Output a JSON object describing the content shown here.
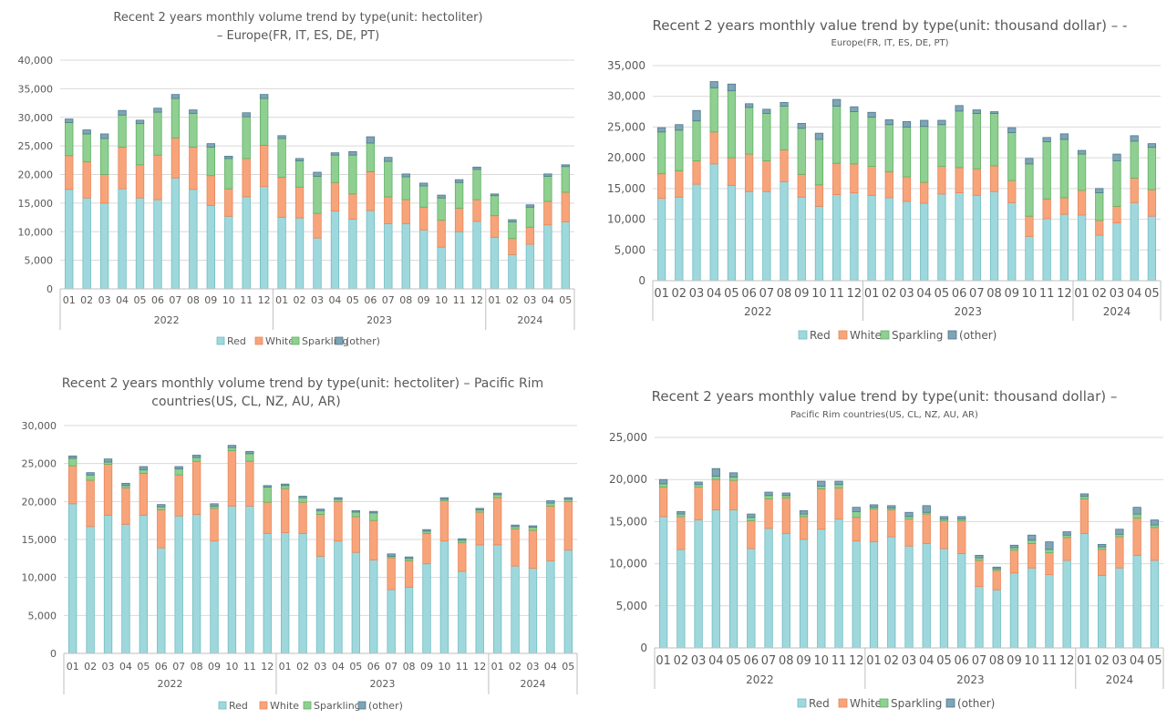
{
  "chart_data": [
    {
      "type": "bar",
      "stacked": true,
      "title_lines": [
        "Recent 2 years monthly volume trend by type(unit: hectoliter)",
        "– Europe(FR, IT, ES, DE, PT)"
      ],
      "ylim": [
        0,
        40000
      ],
      "ytick_labels": [
        "0",
        "5,000",
        "10,000",
        "15,000",
        "20,000",
        "25,000",
        "30,000",
        "35,000",
        "40,000"
      ],
      "categories": [
        "01",
        "02",
        "03",
        "04",
        "05",
        "06",
        "07",
        "08",
        "09",
        "10",
        "11",
        "12",
        "01",
        "02",
        "03",
        "04",
        "05",
        "06",
        "07",
        "08",
        "09",
        "10",
        "11",
        "12",
        "01",
        "02",
        "03",
        "04",
        "05"
      ],
      "years": [
        {
          "label": "2022",
          "count": 12
        },
        {
          "label": "2023",
          "count": 12
        },
        {
          "label": "2024",
          "count": 5
        }
      ],
      "series": [
        {
          "name": "Red",
          "values": [
            17400,
            15900,
            15000,
            17500,
            15900,
            15600,
            19400,
            17400,
            14600,
            12700,
            16100,
            17900,
            12500,
            12400,
            8900,
            13600,
            12200,
            13700,
            11400,
            11400,
            10300,
            7300,
            10000,
            11800,
            9000,
            6000,
            7800,
            11200,
            11700
          ]
        },
        {
          "name": "White",
          "values": [
            5900,
            6300,
            5000,
            7300,
            5800,
            7800,
            7000,
            7400,
            5200,
            4800,
            6700,
            7200,
            7000,
            5400,
            4300,
            5000,
            4400,
            6800,
            4700,
            4200,
            4000,
            4700,
            4100,
            3800,
            3800,
            2800,
            3000,
            4100,
            5200
          ]
        },
        {
          "name": "Sparkling",
          "values": [
            5800,
            4900,
            6300,
            5600,
            7200,
            7500,
            6900,
            5900,
            5000,
            5300,
            7300,
            8200,
            6800,
            4600,
            6500,
            4800,
            6800,
            5000,
            6200,
            4000,
            3700,
            3900,
            4500,
            5300,
            3500,
            2900,
            3500,
            4400,
            4500
          ]
        },
        {
          "name": "(other)",
          "values": [
            600,
            700,
            800,
            800,
            600,
            700,
            700,
            600,
            600,
            400,
            700,
            700,
            500,
            400,
            700,
            400,
            600,
            1100,
            700,
            500,
            500,
            500,
            500,
            400,
            300,
            400,
            400,
            400,
            300
          ]
        }
      ],
      "legend": [
        "Red",
        "White",
        "Sparkling",
        "(other)"
      ],
      "legend_position": "bottom"
    },
    {
      "type": "bar",
      "stacked": true,
      "title_lines": [
        "Recent 2 years monthly value trend by type(unit: thousand dollar) – -",
        "Europe(FR, IT, ES, DE, PT)"
      ],
      "ylim": [
        0,
        35000
      ],
      "ytick_labels": [
        "0",
        "5,000",
        "10,000",
        "15,000",
        "20,000",
        "25,000",
        "30,000",
        "35,000"
      ],
      "categories": [
        "01",
        "02",
        "03",
        "04",
        "05",
        "06",
        "07",
        "08",
        "09",
        "10",
        "11",
        "12",
        "01",
        "02",
        "03",
        "04",
        "05",
        "06",
        "07",
        "08",
        "09",
        "10",
        "11",
        "12",
        "01",
        "02",
        "03",
        "04",
        "05"
      ],
      "years": [
        {
          "label": "2022",
          "count": 12
        },
        {
          "label": "2023",
          "count": 12
        },
        {
          "label": "2024",
          "count": 5
        }
      ],
      "series": [
        {
          "name": "Red",
          "values": [
            13400,
            13600,
            15700,
            19000,
            15500,
            14500,
            14500,
            16100,
            13600,
            12100,
            14000,
            14300,
            13900,
            13500,
            12900,
            12600,
            14100,
            14300,
            13900,
            14500,
            12700,
            7200,
            10100,
            10800,
            10700,
            7400,
            9400,
            12700,
            10500
          ]
        },
        {
          "name": "White",
          "values": [
            4000,
            4300,
            3800,
            5200,
            4500,
            6100,
            5000,
            5200,
            3700,
            3500,
            5100,
            4700,
            4700,
            4200,
            4000,
            3400,
            4500,
            4100,
            4300,
            4200,
            3600,
            3300,
            3200,
            2700,
            4000,
            2400,
            2700,
            4000,
            4300
          ]
        },
        {
          "name": "Sparkling",
          "values": [
            6800,
            6600,
            6500,
            7200,
            10900,
            7600,
            7700,
            7100,
            7500,
            7400,
            9300,
            8500,
            8000,
            7700,
            8100,
            9100,
            6800,
            9200,
            9000,
            8500,
            7800,
            8500,
            9300,
            9500,
            5900,
            4500,
            7400,
            6000,
            6900
          ]
        },
        {
          "name": "(other)",
          "values": [
            700,
            900,
            1700,
            1000,
            1100,
            600,
            700,
            600,
            800,
            1000,
            1100,
            800,
            800,
            800,
            900,
            1000,
            700,
            900,
            600,
            300,
            800,
            900,
            700,
            900,
            600,
            700,
            1100,
            900,
            600
          ]
        }
      ],
      "legend": [
        "Red",
        "White",
        "Sparkling",
        "(other)"
      ],
      "legend_position": "bottom"
    },
    {
      "type": "bar",
      "stacked": true,
      "title_lines": [
        "Recent 2 years monthly volume trend by type(unit: hectoliter) – Pacific Rim",
        "countries(US, CL, NZ, AU, AR)"
      ],
      "ylim": [
        0,
        30000
      ],
      "ytick_labels": [
        "0",
        "5,000",
        "10,000",
        "15,000",
        "20,000",
        "25,000",
        "30,000"
      ],
      "categories": [
        "01",
        "02",
        "03",
        "04",
        "05",
        "06",
        "07",
        "08",
        "09",
        "10",
        "11",
        "12",
        "01",
        "02",
        "03",
        "04",
        "05",
        "06",
        "07",
        "08",
        "09",
        "10",
        "11",
        "12",
        "01",
        "02",
        "03",
        "04",
        "05"
      ],
      "years": [
        {
          "label": "2022",
          "count": 12
        },
        {
          "label": "2023",
          "count": 12
        },
        {
          "label": "2024",
          "count": 5
        }
      ],
      "series": [
        {
          "name": "Red",
          "values": [
            19700,
            16700,
            18200,
            17000,
            18200,
            13900,
            18100,
            18300,
            14800,
            19400,
            19400,
            15800,
            15900,
            15800,
            12800,
            14800,
            13300,
            12300,
            8400,
            8700,
            11800,
            14800,
            10800,
            14300,
            14300,
            11500,
            11200,
            12200,
            13600
          ]
        },
        {
          "name": "White",
          "values": [
            5000,
            6100,
            6700,
            4800,
            5500,
            5000,
            5400,
            7000,
            4300,
            7300,
            5900,
            4100,
            5800,
            4100,
            5500,
            5200,
            4700,
            5200,
            4200,
            3500,
            4000,
            5300,
            3800,
            4300,
            6200,
            4900,
            5000,
            7200,
            6400
          ]
        },
        {
          "name": "Sparkling",
          "values": [
            1000,
            700,
            300,
            300,
            500,
            400,
            800,
            500,
            300,
            400,
            1000,
            2000,
            400,
            600,
            500,
            300,
            600,
            1000,
            200,
            300,
            300,
            200,
            300,
            300,
            400,
            300,
            400,
            400,
            300
          ]
        },
        {
          "name": "(other)",
          "values": [
            300,
            300,
            400,
            300,
            400,
            300,
            300,
            300,
            300,
            300,
            300,
            200,
            200,
            200,
            200,
            200,
            200,
            200,
            300,
            200,
            200,
            200,
            200,
            200,
            200,
            200,
            200,
            300,
            200
          ]
        }
      ],
      "legend": [
        "Red",
        "White",
        "Sparkling",
        "(other)"
      ],
      "legend_position": "bottom"
    },
    {
      "type": "bar",
      "stacked": true,
      "title_lines": [
        "Recent 2 years monthly value trend by type(unit: thousand dollar) –",
        "Pacific Rim countries(US, CL, NZ, AU, AR)"
      ],
      "ylim": [
        0,
        25000
      ],
      "ytick_labels": [
        "0",
        "5,000",
        "10,000",
        "15,000",
        "20,000",
        "25,000"
      ],
      "categories": [
        "01",
        "02",
        "03",
        "04",
        "05",
        "06",
        "07",
        "08",
        "09",
        "10",
        "11",
        "12",
        "01",
        "02",
        "03",
        "04",
        "05",
        "06",
        "07",
        "08",
        "09",
        "10",
        "11",
        "12",
        "01",
        "02",
        "03",
        "04",
        "05"
      ],
      "years": [
        {
          "label": "2022",
          "count": 12
        },
        {
          "label": "2023",
          "count": 12
        },
        {
          "label": "2024",
          "count": 5
        }
      ],
      "series": [
        {
          "name": "Red",
          "values": [
            15600,
            11700,
            15200,
            16400,
            16400,
            11800,
            14200,
            13600,
            12900,
            14100,
            15300,
            12700,
            12600,
            13200,
            12100,
            12400,
            11800,
            11200,
            7300,
            6900,
            8900,
            9500,
            8700,
            10400,
            13600,
            8600,
            9500,
            11000,
            10400
          ]
        },
        {
          "name": "White",
          "values": [
            3500,
            3900,
            3900,
            3600,
            3500,
            3300,
            3500,
            4200,
            2700,
            4800,
            3700,
            2800,
            3900,
            3200,
            3200,
            3500,
            3300,
            3900,
            3100,
            2300,
            2700,
            2900,
            2600,
            2700,
            4100,
            3100,
            3700,
            4400,
            3900
          ]
        },
        {
          "name": "Sparkling",
          "values": [
            400,
            300,
            300,
            400,
            400,
            400,
            400,
            300,
            300,
            300,
            400,
            700,
            200,
            200,
            300,
            200,
            200,
            200,
            300,
            200,
            300,
            400,
            400,
            300,
            300,
            300,
            300,
            500,
            300
          ]
        },
        {
          "name": "(other)",
          "values": [
            500,
            300,
            300,
            900,
            500,
            400,
            400,
            300,
            400,
            600,
            400,
            500,
            300,
            300,
            500,
            800,
            300,
            300,
            300,
            200,
            300,
            600,
            900,
            400,
            300,
            300,
            600,
            800,
            600
          ]
        }
      ],
      "legend": [
        "Red",
        "White",
        "Sparkling",
        "(other)"
      ],
      "legend_position": "bottom"
    }
  ],
  "colors": {
    "Red": "#9fd8dc",
    "White": "#f7a47a",
    "Sparkling": "#8fcf91",
    "(other)": "#7fa4b5",
    "axis_text": "#595959",
    "title_text": "#595959",
    "grid": "#d9d9d9"
  }
}
